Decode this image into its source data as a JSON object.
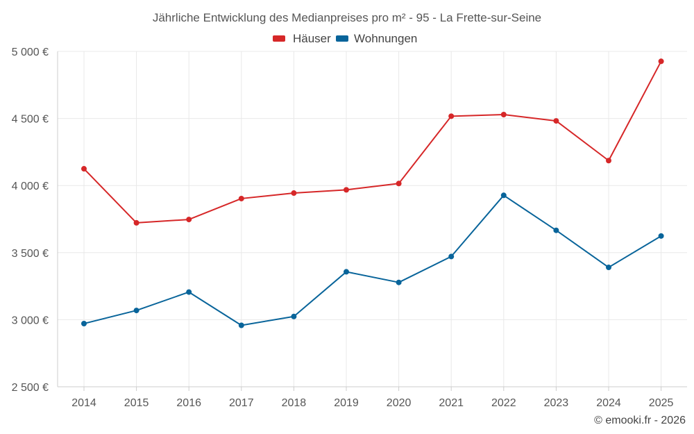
{
  "chart_data": {
    "type": "line",
    "title": "Jährliche Entwicklung des Medianpreises pro m² - 95 - La Frette-sur-Seine",
    "x": [
      "2014",
      "2015",
      "2016",
      "2017",
      "2018",
      "2019",
      "2020",
      "2021",
      "2022",
      "2023",
      "2024",
      "2025"
    ],
    "series": [
      {
        "name": "Häuser",
        "color": "#d62728",
        "values": [
          4125,
          3722,
          3747,
          3903,
          3944,
          3968,
          4015,
          4517,
          4529,
          4482,
          4186,
          4926
        ]
      },
      {
        "name": "Wohnungen",
        "color": "#08649a",
        "values": [
          2971,
          3069,
          3206,
          2958,
          3024,
          3357,
          3278,
          3471,
          3927,
          3666,
          3390,
          3624
        ]
      }
    ],
    "ylim": [
      2500,
      5000
    ],
    "yticks": [
      2500,
      3000,
      3500,
      4000,
      4500,
      5000
    ],
    "ytick_labels": [
      "2 500 €",
      "3 000 €",
      "3 500 €",
      "4 000 €",
      "4 500 €",
      "5 000 €"
    ],
    "xlabel": "",
    "ylabel": "",
    "legend_position": "top-center",
    "grid": true
  },
  "credit": "© emooki.fr - 2026"
}
